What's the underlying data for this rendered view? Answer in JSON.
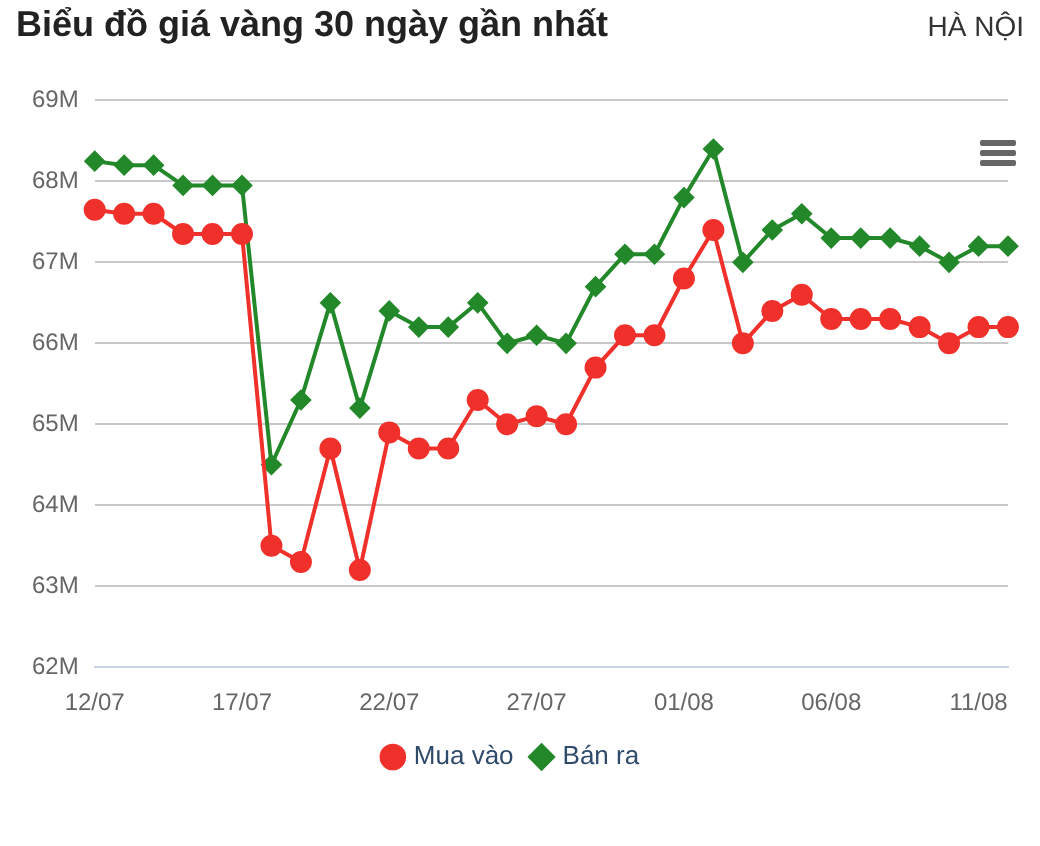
{
  "chart_data": {
    "type": "line",
    "title": "Biểu đồ giá vàng 30 ngày gần nhất",
    "subtitle": "HÀ NỘI",
    "categories": [
      "12/07",
      null,
      null,
      null,
      null,
      "17/07",
      null,
      null,
      null,
      null,
      "22/07",
      null,
      null,
      null,
      null,
      "27/07",
      null,
      null,
      null,
      null,
      "01/08",
      null,
      null,
      null,
      null,
      "06/08",
      null,
      null,
      null,
      null,
      "11/08",
      null
    ],
    "series": [
      {
        "name": "Mua vào",
        "color": "#f0302a",
        "marker": "circle",
        "values": [
          67.65,
          67.6,
          67.6,
          67.35,
          67.35,
          67.35,
          63.5,
          63.3,
          64.7,
          63.2,
          64.9,
          64.7,
          64.7,
          65.3,
          65.0,
          65.1,
          65.0,
          65.7,
          66.1,
          66.1,
          66.8,
          67.4,
          66.0,
          66.4,
          66.6,
          66.3,
          66.3,
          66.3,
          66.2,
          66.0,
          66.2,
          66.2
        ]
      },
      {
        "name": "Bán ra",
        "color": "#23882a",
        "marker": "diamond",
        "values": [
          68.25,
          68.2,
          68.2,
          67.95,
          67.95,
          67.95,
          64.5,
          65.3,
          66.5,
          65.2,
          66.4,
          66.2,
          66.2,
          66.5,
          66.0,
          66.1,
          66.0,
          66.7,
          67.1,
          67.1,
          67.8,
          68.4,
          67.0,
          67.4,
          67.6,
          67.3,
          67.3,
          67.3,
          67.2,
          67.0,
          67.2,
          67.2
        ]
      }
    ],
    "ylim": [
      62,
      69
    ],
    "yticks": [
      {
        "value": 62,
        "label": "62M"
      },
      {
        "value": 63,
        "label": "63M"
      },
      {
        "value": 64,
        "label": "64M"
      },
      {
        "value": 65,
        "label": "65M"
      },
      {
        "value": 66,
        "label": "66M"
      },
      {
        "value": 67,
        "label": "67M"
      },
      {
        "value": 68,
        "label": "68M"
      },
      {
        "value": 69,
        "label": "69M"
      }
    ],
    "grid": "y",
    "legend": "bottom",
    "line_style": "solid"
  }
}
